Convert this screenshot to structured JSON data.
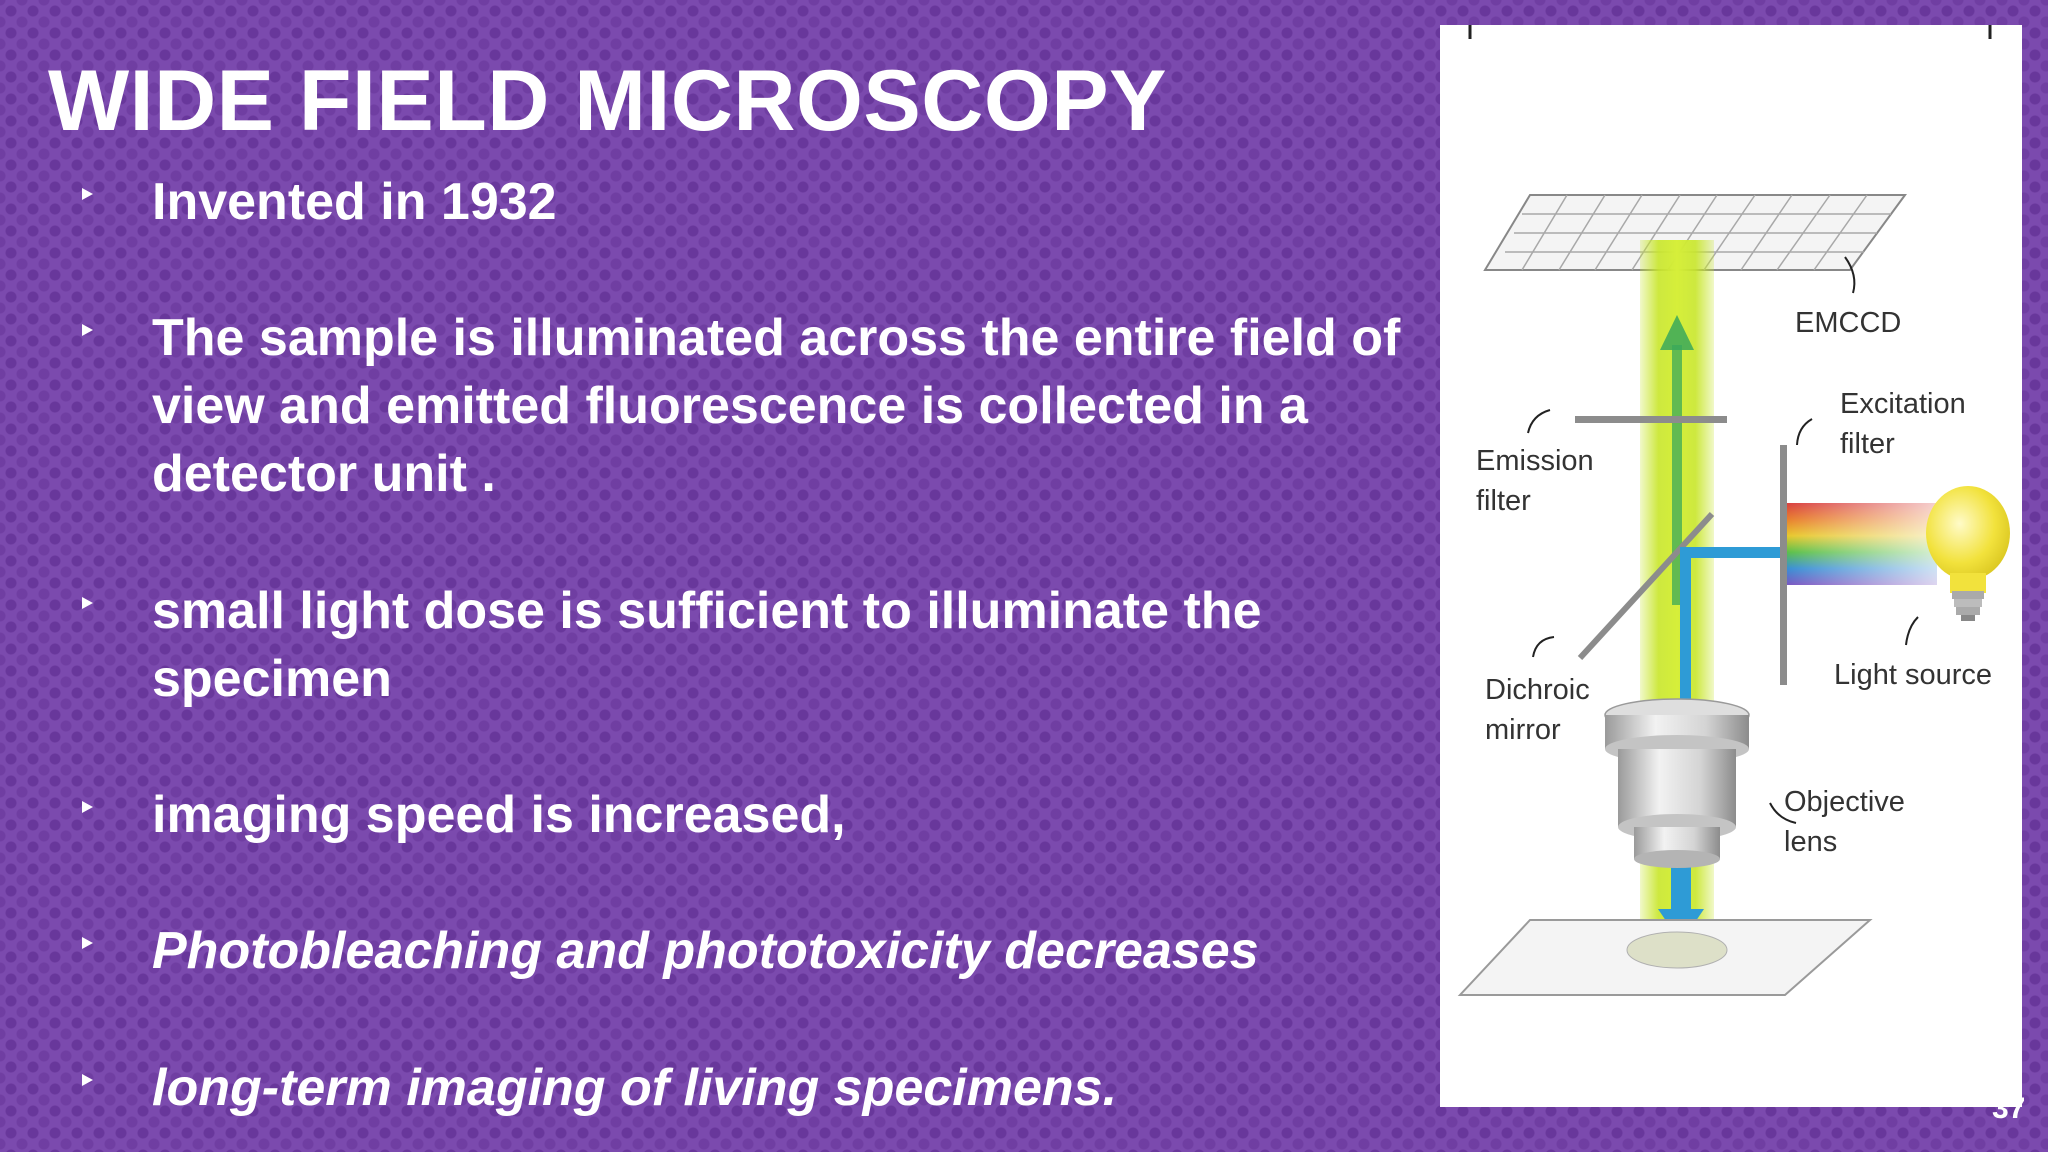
{
  "slide": {
    "title": "WIDE FIELD MICROSCOPY",
    "page_number": "37"
  },
  "bullets": [
    {
      "text": "Invented in 1932",
      "italic": false
    },
    {
      "text": "The sample is illuminated across the entire field of view and emitted fluorescence is collected in a detector unit .",
      "italic": false
    },
    {
      "text": "small light dose is sufficient to illuminate the specimen",
      "italic": false
    },
    {
      "text": "imaging speed is increased,",
      "italic": false
    },
    {
      "text": "Photobleaching and phototoxicity decreases",
      "italic": true
    },
    {
      "text": "long-term imaging of living specimens.",
      "italic": true
    }
  ],
  "figure": {
    "labels": {
      "emccd": "EMCCD",
      "excitation_filter_1": "Excitation",
      "excitation_filter_2": "filter",
      "emission_filter_1": "Emission",
      "emission_filter_2": "filter",
      "dichroic_mirror_1": "Dichroic",
      "dichroic_mirror_2": "mirror",
      "light_source": "Light source",
      "objective_lens_1": "Objective",
      "objective_lens_2": "lens"
    },
    "colors": {
      "emission_beam": "#c8e62a",
      "excitation_beam": "#2e9bd6",
      "bulb": "#f2e23c"
    }
  }
}
